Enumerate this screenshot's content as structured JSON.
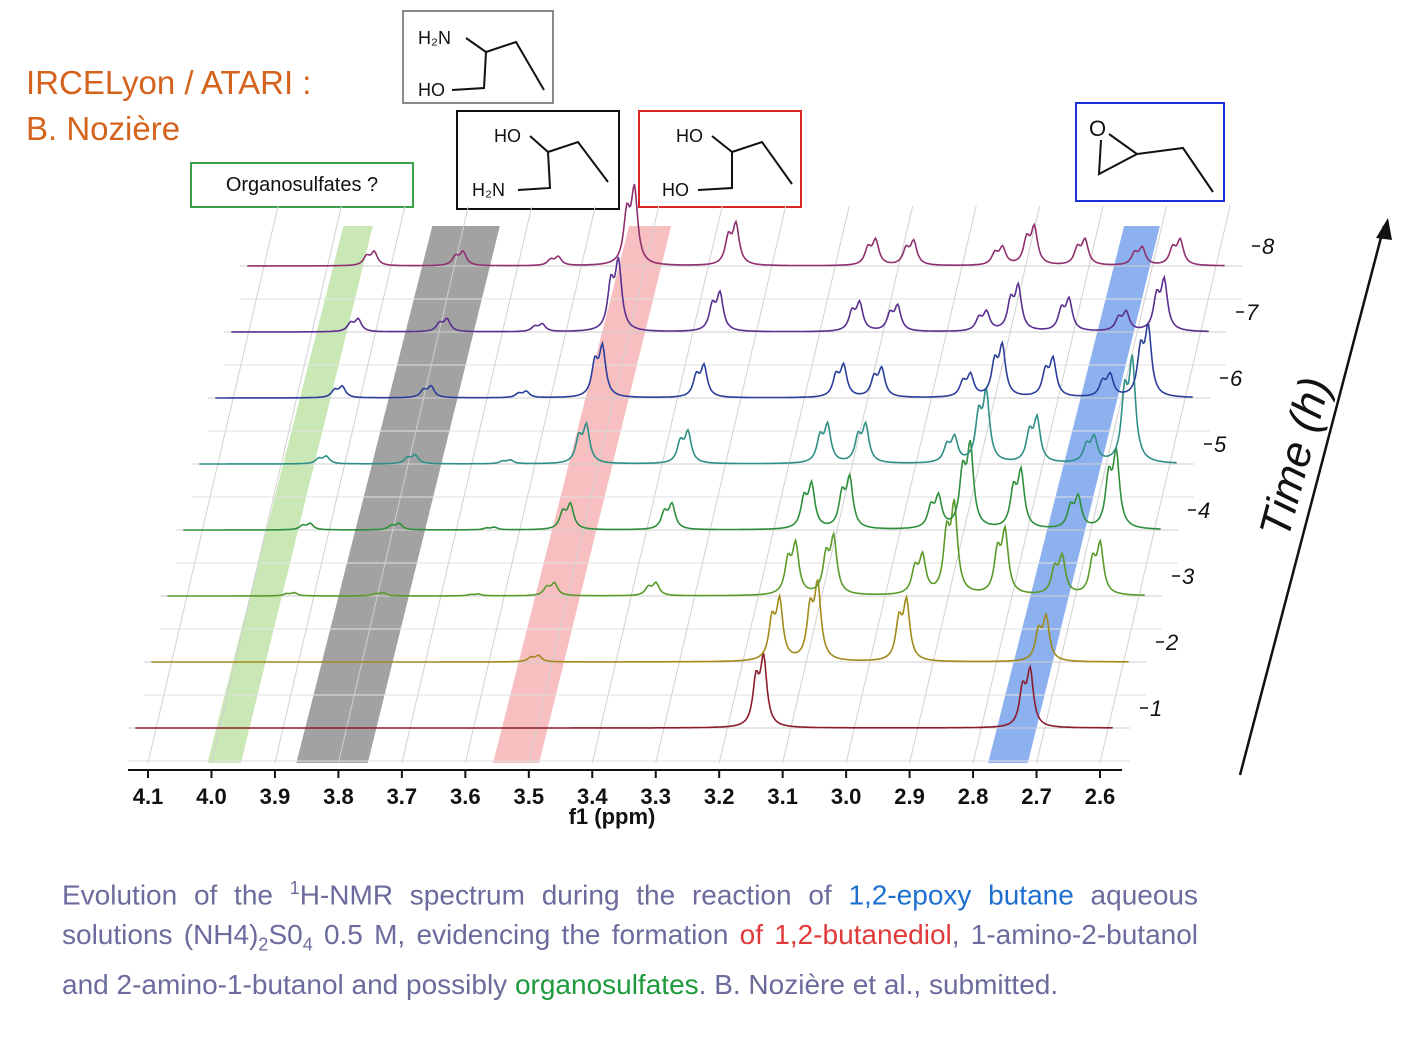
{
  "credit": {
    "line1": "IRCELyon / ATARI :",
    "line2": "B. Nozière"
  },
  "structures": {
    "amino1": {
      "top": "H₂N",
      "bottom": "HO"
    },
    "amino2": {
      "top": "HO",
      "bottom": "H₂N"
    },
    "diol": {
      "top": "HO",
      "bottom": "HO"
    },
    "epoxide": {
      "atom": "O"
    }
  },
  "organosulfates_label": "Organosulfates ?",
  "chart_data": {
    "type": "line",
    "xlabel": "f1 (ppm)",
    "ylabel": "Time (h)",
    "x_ticks": [
      "4.1",
      "4.0",
      "3.9",
      "3.8",
      "3.7",
      "3.6",
      "3.5",
      "3.4",
      "3.3",
      "3.2",
      "3.1",
      "3.0",
      "2.9",
      "2.8",
      "2.7",
      "2.6"
    ],
    "xlim": [
      4.14,
      2.58
    ],
    "x_reversed": true,
    "time_ticks": [
      "1",
      "2",
      "3",
      "4",
      "5",
      "6",
      "7",
      "8"
    ],
    "series_colors": [
      "#8b1c2b",
      "#a08a1c",
      "#5b9a2a",
      "#2e8f3a",
      "#2f8f86",
      "#2b3f9a",
      "#5a2f8f",
      "#8f2f6f"
    ],
    "highlight_bands": [
      {
        "color": "#9fd67a",
        "range": [
          4.0,
          3.96
        ]
      },
      {
        "color": "#555555",
        "range": [
          3.86,
          3.76
        ]
      },
      {
        "color": "#f08a8a",
        "range": [
          3.55,
          3.49
        ]
      },
      {
        "color": "#2f6fe0",
        "range": [
          2.77,
          2.72
        ]
      }
    ],
    "time_axis_label": "Time (h)"
  },
  "caption": {
    "part1": "Evolution of the ",
    "sup1": "1",
    "part2": "H-NMR spectrum during the reaction of ",
    "blue": "1,2-epoxy butane",
    "part3": " aqueous solutions (NH4)",
    "sub1": "2",
    "part4": "S0",
    "sub2": "4",
    "part5": " 0.5 M, evidencing the formation ",
    "red1": "of 1,2-butanediol",
    "part6": ", 1-amino-2-butanol and 2-amino-1-butanol and possibly ",
    "green": "organosulfates",
    "part7": ". B. Nozière et al., submitted."
  }
}
